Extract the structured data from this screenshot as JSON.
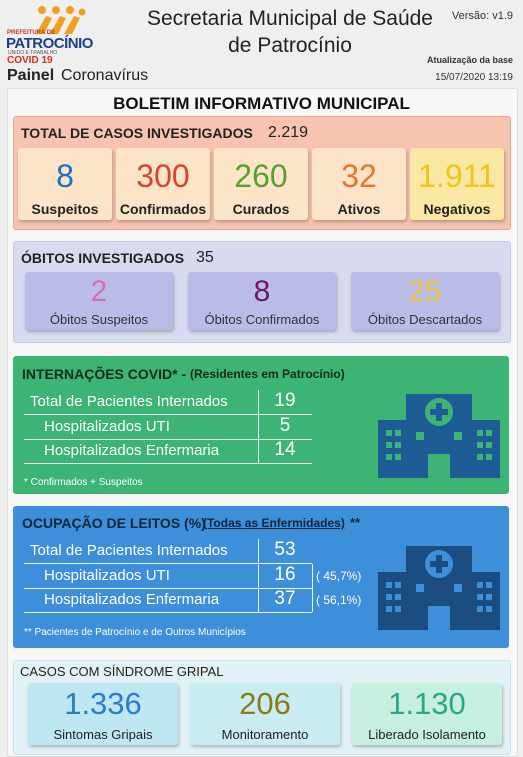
{
  "header": {
    "logo_top": "PREFEITURA DE",
    "logo_name": "PATROCÍNIO",
    "logo_motto": "UNIDO E TRABALHO",
    "logo_covid": "COVID 19",
    "title_line1": "Secretaria Municipal de Saúde",
    "title_line2": "de Patrocínio",
    "version": "Versão: v1.9",
    "update_label": "Atualização da base",
    "update_date": "15/07/2020 13:19",
    "panel": "Painel",
    "panel_sub": "Coronavírus"
  },
  "bulletin_title": "BOLETIM INFORMATIVO MUNICIPAL",
  "cases": {
    "title": "TOTAL DE CASOS INVESTIGADOS",
    "total": "2.219",
    "items": [
      {
        "value": "8",
        "label": "Suspeitos"
      },
      {
        "value": "300",
        "label": "Confirmados"
      },
      {
        "value": "260",
        "label": "Curados"
      },
      {
        "value": "32",
        "label": "Ativos"
      },
      {
        "value": "1.911",
        "label": "Negativos"
      }
    ]
  },
  "deaths": {
    "title": "ÓBITOS INVESTIGADOS",
    "total": "35",
    "items": [
      {
        "value": "2",
        "label": "Óbitos Suspeitos"
      },
      {
        "value": "8",
        "label": "Óbitos Confirmados"
      },
      {
        "value": "25",
        "label": "Óbitos Descartados"
      }
    ]
  },
  "hospital": {
    "title": "INTERNAÇÕES COVID* -",
    "subtitle": "(Residentes em Patrocínio)",
    "rows": [
      [
        "Total de Pacientes Internados",
        "19"
      ],
      [
        "Hospitalizados UTI",
        "5"
      ],
      [
        "Hospitalizados Enfermaria",
        "14"
      ]
    ],
    "note": "* Confirmados + Suspeitos"
  },
  "beds": {
    "title": "OCUPAÇÃO DE LEITOS (%)",
    "link": "(Todas as Enfermidades)",
    "suffix": "**",
    "rows": [
      [
        "Total de Pacientes Internados",
        "53"
      ],
      [
        "Hospitalizados UTI",
        "16",
        "( 45,7%)"
      ],
      [
        "Hospitalizados Enfermaria",
        "37",
        "( 56,1%)"
      ]
    ],
    "note": "** Pacientes de Patrocínio e de Outros Municípios"
  },
  "flu": {
    "title": "CASOS COM SÍNDROME GRIPAL",
    "items": [
      {
        "value": "1.336",
        "label": "Sintomas Gripais"
      },
      {
        "value": "206",
        "label": "Monitoramento"
      },
      {
        "value": "1.130",
        "label": "Liberado Isolamento"
      }
    ]
  }
}
